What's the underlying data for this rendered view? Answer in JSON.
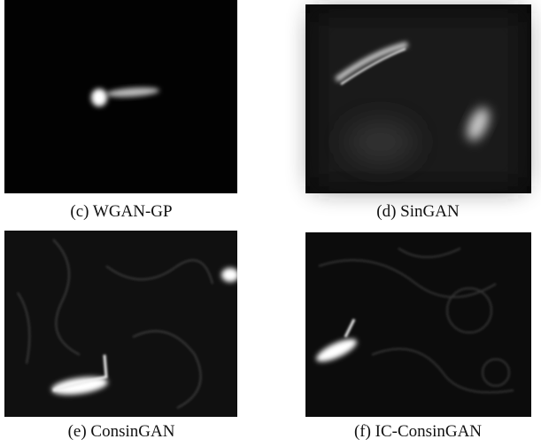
{
  "panels": [
    {
      "caption": "(c) WGAN-GP"
    },
    {
      "caption": "(d) SinGAN"
    },
    {
      "caption": "(e) ConsinGAN"
    },
    {
      "caption": "(f) IC-ConsinGAN"
    }
  ]
}
